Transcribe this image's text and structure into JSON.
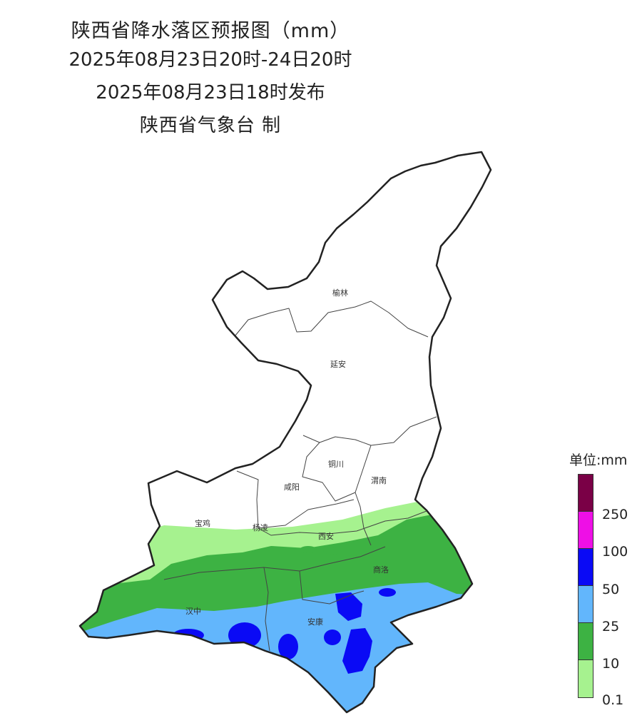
{
  "header": {
    "title": "陕西省降水落区预报图（mm）",
    "period": "2025年08月23日20时-24日20时",
    "issued": "2025年08月23日18时发布",
    "agency": "陕西省气象台 制"
  },
  "cities": {
    "yulin": "榆林",
    "yanan": "延安",
    "tongchuan": "铜川",
    "weinan": "渭南",
    "xianyang": "咸阳",
    "baoji": "宝鸡",
    "yangling": "杨凌",
    "xian": "西安",
    "shangluo": "商洛",
    "hanzhong": "汉中",
    "ankang": "安康"
  },
  "legend": {
    "title": "单位:mm",
    "labels": [
      "250",
      "100",
      "50",
      "25",
      "10",
      "0.1"
    ],
    "colors": [
      "#7a0046",
      "#ee0fe6",
      "#0a0af5",
      "#62b6fc",
      "#3db243",
      "#a6f28f"
    ]
  }
}
